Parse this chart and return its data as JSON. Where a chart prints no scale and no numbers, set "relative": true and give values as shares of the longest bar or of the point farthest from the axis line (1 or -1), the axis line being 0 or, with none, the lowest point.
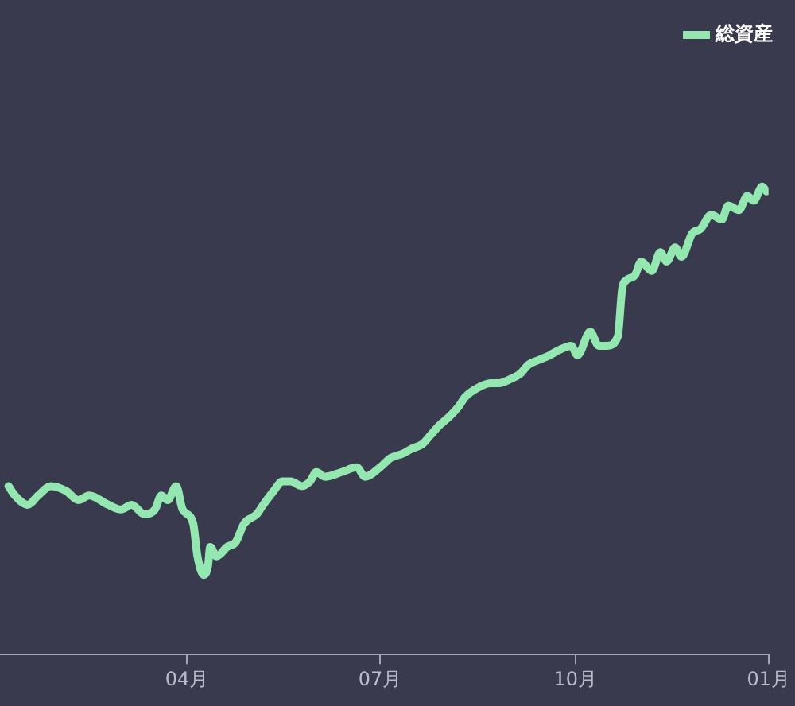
{
  "chart_data": {
    "type": "line",
    "relative": true,
    "legend": "top right",
    "grid": false,
    "marker": "none",
    "line_style": "solid",
    "tick_labels": "x",
    "xlim": [
      "--01-03",
      "--12-31"
    ],
    "xticks": [
      {
        "value": "--04-01",
        "label": "04月"
      },
      {
        "value": "--07-01",
        "label": "07月"
      },
      {
        "value": "--10-01",
        "label": "10月"
      },
      {
        "value": "--12-31",
        "label": "01月"
      }
    ],
    "x": [
      "--01-07",
      "--01-10",
      "--01-16",
      "--01-21",
      "--01-27",
      "--02-03",
      "--02-09",
      "--02-14",
      "--02-23",
      "--03-01",
      "--03-06",
      "--03-12",
      "--03-17",
      "--03-20",
      "--03-23",
      "--03-27",
      "--03-30",
      "--04-04",
      "--04-06",
      "--04-09",
      "--04-11",
      "--04-12",
      "--04-15",
      "--04-20",
      "--04-24",
      "--04-28",
      "--05-04",
      "--05-07",
      "--05-12",
      "--05-16",
      "--05-20",
      "--05-25",
      "--05-29",
      "--06-01",
      "--06-05",
      "--06-13",
      "--06-20",
      "--06-24",
      "--07-01",
      "--07-06",
      "--07-12",
      "--07-16",
      "--07-21",
      "--07-25",
      "--07-29",
      "--08-03",
      "--08-07",
      "--08-10",
      "--08-16",
      "--08-22",
      "--08-26",
      "--09-01",
      "--09-05",
      "--09-09",
      "--09-14",
      "--09-19",
      "--09-23",
      "--09-29",
      "--10-02",
      "--10-08",
      "--10-12",
      "--10-16",
      "--10-21",
      "--10-23",
      "--10-25",
      "--10-29",
      "--11-01",
      "--11-06",
      "--11-10",
      "--11-13",
      "--11-17",
      "--11-20",
      "--11-25",
      "--11-29",
      "--12-04",
      "--12-09",
      "--12-12",
      "--12-17",
      "--12-21",
      "--12-24",
      "--12-28",
      "--12-30"
    ],
    "series": [
      {
        "name": "総資産",
        "color": "#93e8b0",
        "values": [
          0.36,
          0.34,
          0.32,
          0.34,
          0.36,
          0.35,
          0.33,
          0.34,
          0.32,
          0.31,
          0.32,
          0.3,
          0.31,
          0.34,
          0.33,
          0.36,
          0.31,
          0.28,
          0.21,
          0.17,
          0.19,
          0.23,
          0.21,
          0.23,
          0.24,
          0.28,
          0.3,
          0.32,
          0.35,
          0.37,
          0.37,
          0.36,
          0.37,
          0.39,
          0.38,
          0.39,
          0.4,
          0.38,
          0.4,
          0.42,
          0.43,
          0.44,
          0.45,
          0.47,
          0.49,
          0.51,
          0.53,
          0.55,
          0.57,
          0.58,
          0.58,
          0.59,
          0.6,
          0.62,
          0.63,
          0.64,
          0.65,
          0.66,
          0.64,
          0.69,
          0.66,
          0.66,
          0.68,
          0.78,
          0.8,
          0.81,
          0.84,
          0.82,
          0.86,
          0.84,
          0.87,
          0.85,
          0.9,
          0.91,
          0.94,
          0.93,
          0.96,
          0.95,
          0.98,
          0.97,
          1,
          0.99
        ]
      }
    ]
  }
}
